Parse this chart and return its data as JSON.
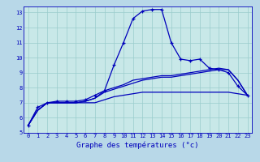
{
  "title": "Graphe des températures (°c)",
  "bg_color": "#b8d8e8",
  "plot_bg_color": "#c8e8e8",
  "line_color": "#0000bb",
  "grid_color": "#99cccc",
  "xlim": [
    -0.5,
    23.5
  ],
  "ylim": [
    5,
    13.4
  ],
  "xticks": [
    0,
    1,
    2,
    3,
    4,
    5,
    6,
    7,
    8,
    9,
    10,
    11,
    12,
    13,
    14,
    15,
    16,
    17,
    18,
    19,
    20,
    21,
    22,
    23
  ],
  "yticks": [
    5,
    6,
    7,
    8,
    9,
    10,
    11,
    12,
    13
  ],
  "curve1": [
    5.5,
    6.7,
    7.0,
    7.1,
    7.1,
    7.1,
    7.2,
    7.5,
    7.8,
    9.5,
    11.0,
    12.6,
    13.1,
    13.2,
    13.2,
    11.0,
    9.9,
    9.8,
    9.9,
    9.3,
    9.2,
    9.0,
    8.1,
    7.5
  ],
  "curve2": [
    5.5,
    6.5,
    7.0,
    7.0,
    7.0,
    7.0,
    7.0,
    7.0,
    7.2,
    7.4,
    7.5,
    7.6,
    7.7,
    7.7,
    7.7,
    7.7,
    7.7,
    7.7,
    7.7,
    7.7,
    7.7,
    7.7,
    7.6,
    7.5
  ],
  "curve3": [
    5.5,
    6.5,
    7.0,
    7.0,
    7.0,
    7.0,
    7.1,
    7.3,
    7.7,
    7.9,
    8.1,
    8.3,
    8.5,
    8.6,
    8.7,
    8.7,
    8.8,
    8.9,
    9.0,
    9.1,
    9.2,
    9.2,
    8.5,
    7.5
  ],
  "curve4": [
    5.5,
    6.5,
    7.0,
    7.0,
    7.0,
    7.0,
    7.1,
    7.3,
    7.8,
    8.0,
    8.2,
    8.5,
    8.6,
    8.7,
    8.8,
    8.8,
    8.9,
    9.0,
    9.1,
    9.2,
    9.3,
    9.2,
    8.5,
    7.5
  ],
  "xlabel_fontsize": 6.5,
  "tick_fontsize": 5.0
}
